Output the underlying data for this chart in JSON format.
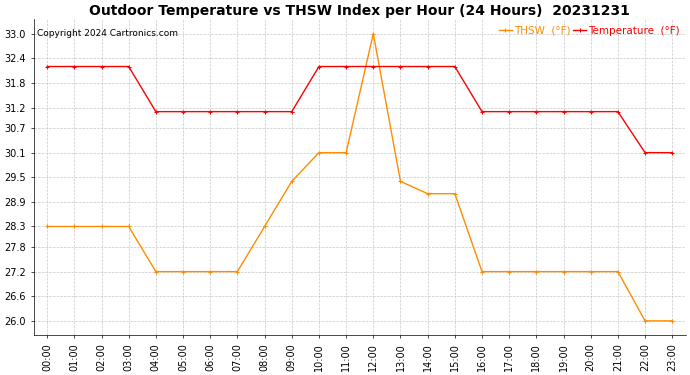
{
  "title": "Outdoor Temperature vs THSW Index per Hour (24 Hours)  20231231",
  "copyright": "Copyright 2024 Cartronics.com",
  "legend_thsw": "THSW  (°F)",
  "legend_temp": "Temperature  (°F)",
  "hours": [
    "00:00",
    "01:00",
    "02:00",
    "03:00",
    "04:00",
    "05:00",
    "06:00",
    "07:00",
    "08:00",
    "09:00",
    "10:00",
    "11:00",
    "12:00",
    "13:00",
    "14:00",
    "15:00",
    "16:00",
    "17:00",
    "18:00",
    "19:00",
    "20:00",
    "21:00",
    "22:00",
    "23:00"
  ],
  "temperature": [
    32.2,
    32.2,
    32.2,
    32.2,
    31.1,
    31.1,
    31.1,
    31.1,
    31.1,
    31.1,
    32.2,
    32.2,
    32.2,
    32.2,
    32.2,
    32.2,
    31.1,
    31.1,
    31.1,
    31.1,
    31.1,
    31.1,
    30.1,
    30.1
  ],
  "thsw": [
    28.3,
    28.3,
    28.3,
    28.3,
    27.2,
    27.2,
    27.2,
    27.2,
    28.3,
    29.4,
    30.1,
    30.1,
    33.0,
    29.4,
    29.1,
    29.1,
    27.2,
    27.2,
    27.2,
    27.2,
    27.2,
    27.2,
    26.0,
    26.0
  ],
  "temp_color": "#ff0000",
  "thsw_color": "#ff8c00",
  "bg_color": "#ffffff",
  "grid_color": "#c8c8c8",
  "ylim_min": 25.65,
  "ylim_max": 33.35,
  "yticks": [
    26.0,
    26.6,
    27.2,
    27.8,
    28.3,
    28.9,
    29.5,
    30.1,
    30.7,
    31.2,
    31.8,
    32.4,
    33.0
  ],
  "title_fontsize": 10,
  "copyright_fontsize": 6.5,
  "legend_fontsize": 7.5,
  "tick_fontsize": 7
}
